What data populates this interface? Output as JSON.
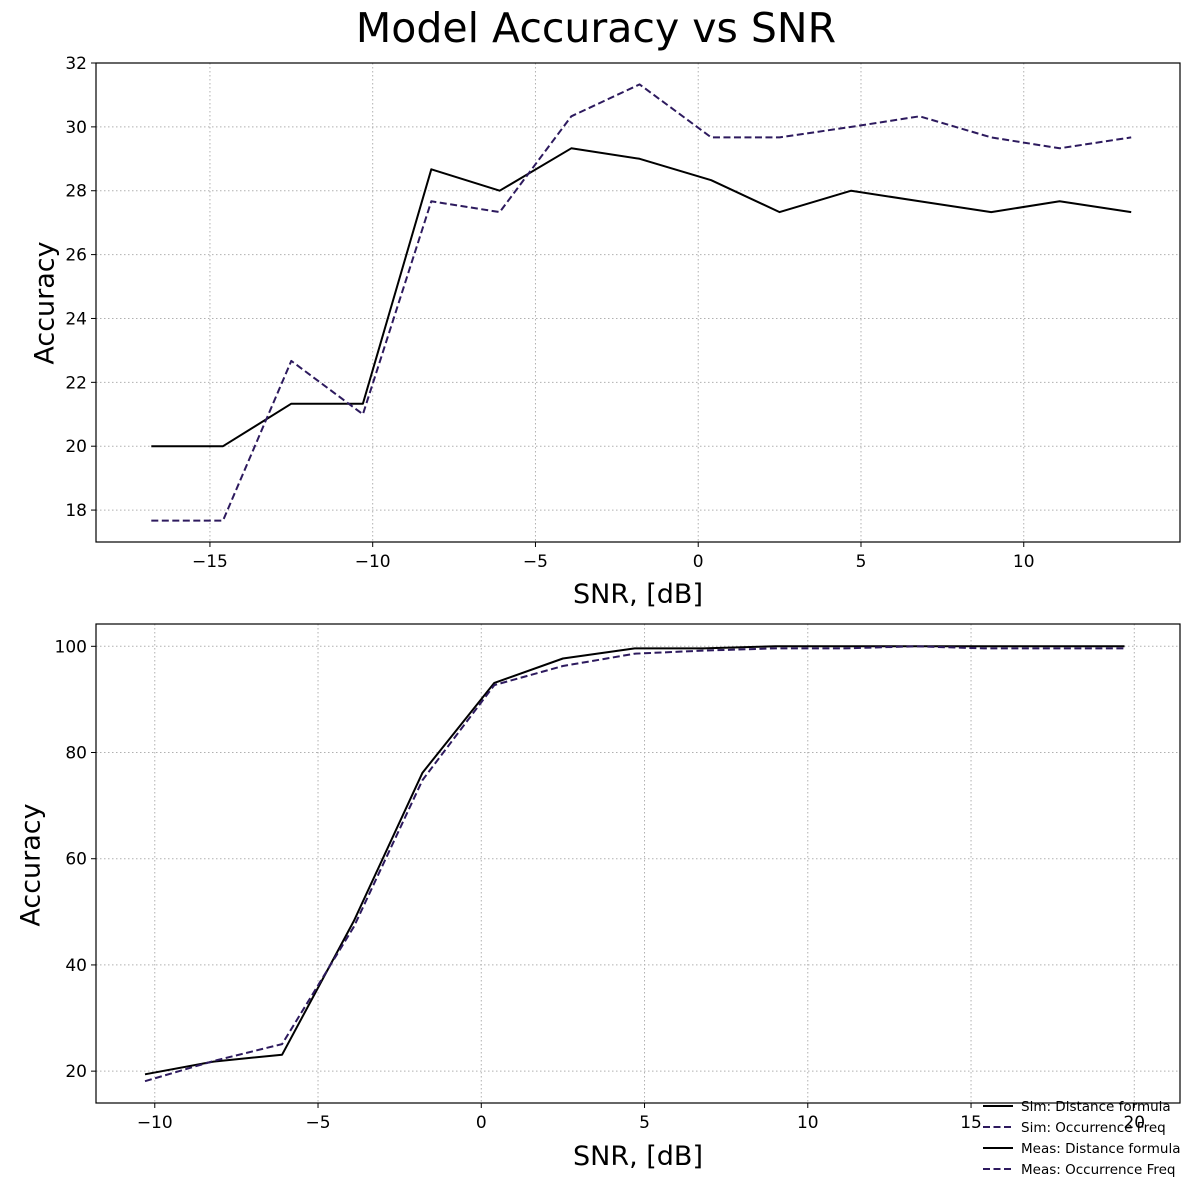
{
  "figure": {
    "title": "Model Accuracy vs SNR"
  },
  "chart_data": [
    {
      "type": "line",
      "xlabel": "SNR, [dB]",
      "ylabel": "Accuracy",
      "xlim": [
        -18.5,
        14.8
      ],
      "ylim": [
        17.0,
        32.0
      ],
      "xticks": [
        -15,
        -10,
        -5,
        0,
        5,
        10
      ],
      "xtick_labels": [
        "−15",
        "−10",
        "−5",
        "0",
        "5",
        "10"
      ],
      "yticks": [
        18,
        20,
        22,
        24,
        26,
        28,
        30,
        32
      ],
      "ytick_labels": [
        "18",
        "20",
        "22",
        "24",
        "26",
        "28",
        "30",
        "32"
      ],
      "grid": true,
      "series": [
        {
          "style": "solid",
          "color": "#000000",
          "x": [
            -16.8,
            -14.6,
            -12.5,
            -10.3,
            -8.2,
            -6.1,
            -3.9,
            -1.8,
            0.4,
            2.5,
            4.7,
            6.8,
            9.0,
            11.1,
            13.3
          ],
          "y": [
            20.0,
            20.0,
            21.33,
            21.33,
            28.67,
            28.0,
            29.33,
            29.0,
            28.33,
            27.33,
            28.0,
            27.67,
            27.33,
            27.67,
            27.33
          ]
        },
        {
          "style": "dashed",
          "color": "#2d1a5e",
          "x": [
            -16.8,
            -14.6,
            -12.5,
            -10.3,
            -8.2,
            -6.1,
            -3.9,
            -1.8,
            0.4,
            2.5,
            4.7,
            6.8,
            9.0,
            11.1,
            13.3
          ],
          "y": [
            17.67,
            17.67,
            22.67,
            21.0,
            27.67,
            27.33,
            30.33,
            31.33,
            29.67,
            29.67,
            30.0,
            30.33,
            29.67,
            29.33,
            29.67
          ]
        }
      ]
    },
    {
      "type": "line",
      "xlabel": "SNR, [dB]",
      "ylabel": "Accuracy",
      "xlim": [
        -11.8,
        21.4
      ],
      "ylim": [
        14.0,
        104.2
      ],
      "xticks": [
        -10,
        -5,
        0,
        5,
        10,
        15,
        20
      ],
      "xtick_labels": [
        "−10",
        "−5",
        "0",
        "5",
        "10",
        "15",
        "20"
      ],
      "yticks": [
        20,
        40,
        60,
        80,
        100
      ],
      "ytick_labels": [
        "20",
        "40",
        "60",
        "80",
        "100"
      ],
      "grid": true,
      "legend_position": "lower-right",
      "series": [
        {
          "name": "Sim: Distance formula",
          "style": "solid",
          "color": "#000000",
          "x": [
            -10.3,
            -8.2,
            -6.1,
            -3.9,
            -1.8,
            0.4,
            2.5,
            4.7,
            6.8,
            9.0,
            11.1,
            13.3,
            15.4,
            17.6,
            19.7
          ],
          "y": [
            19.4,
            21.8,
            23.1,
            48.3,
            76.2,
            93.1,
            97.7,
            99.6,
            99.6,
            100.0,
            100.0,
            100.0,
            100.0,
            100.0,
            100.0
          ]
        },
        {
          "name": "Sim: Occurrence Freq",
          "style": "dashed",
          "color": "#2d1a5e",
          "x": [
            -10.3,
            -8.2,
            -6.1,
            -3.9,
            -1.8,
            0.4,
            2.5,
            4.7,
            6.8,
            9.0,
            11.1,
            13.3,
            15.4,
            17.6,
            19.7
          ],
          "y": [
            18.1,
            21.9,
            25.1,
            47.2,
            74.8,
            92.7,
            96.3,
            98.6,
            99.2,
            99.6,
            99.6,
            100.0,
            99.6,
            99.6,
            99.6
          ]
        },
        {
          "name": "Meas: Distance formula",
          "style": "solid",
          "color": "#000000"
        },
        {
          "name": "Meas: Occurrence Freq",
          "style": "dashed",
          "color": "#2d1a5e"
        }
      ]
    }
  ]
}
